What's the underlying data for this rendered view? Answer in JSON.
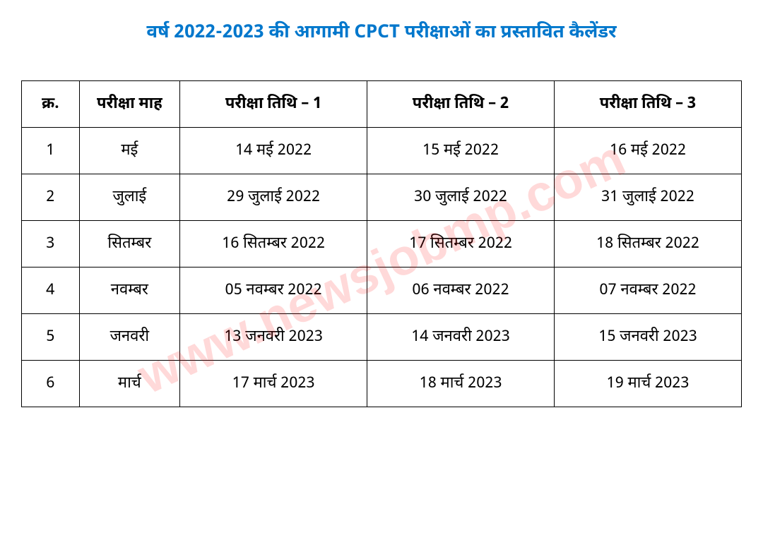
{
  "title": "वर्ष 2022-2023 की आगामी CPCT परीक्षाओं का प्रस्तावित कैलेंडर",
  "watermark_text": "www.newsjobmp.com",
  "table": {
    "columns": [
      {
        "label": "क्र.",
        "width": "8%"
      },
      {
        "label": "परीक्षा माह",
        "width": "14%"
      },
      {
        "label": "परीक्षा तिथि – 1",
        "width": "26%"
      },
      {
        "label": "परीक्षा तिथि – 2",
        "width": "26%"
      },
      {
        "label": "परीक्षा तिथि – 3",
        "width": "26%"
      }
    ],
    "rows": [
      {
        "index": "1",
        "month": "मई",
        "date1": "14 मई 2022",
        "date2": "15 मई 2022",
        "date3": "16 मई 2022"
      },
      {
        "index": "2",
        "month": "जुलाई",
        "date1": "29 जुलाई 2022",
        "date2": "30 जुलाई 2022",
        "date3": "31 जुलाई 2022"
      },
      {
        "index": "3",
        "month": "सितम्बर",
        "date1": "16 सितम्बर 2022",
        "date2": "17 सितम्बर 2022",
        "date3": "18 सितम्बर 2022"
      },
      {
        "index": "4",
        "month": "नवम्बर",
        "date1": "05 नवम्बर 2022",
        "date2": "06 नवम्बर 2022",
        "date3": "07 नवम्बर 2022"
      },
      {
        "index": "5",
        "month": "जनवरी",
        "date1": "13 जनवरी 2023",
        "date2": "14 जनवरी 2023",
        "date3": "15 जनवरी 2023"
      },
      {
        "index": "6",
        "month": "मार्च",
        "date1": "17 मार्च 2023",
        "date2": "18 मार्च 2023",
        "date3": "19 मार्च 2023"
      }
    ]
  },
  "styling": {
    "title_color": "#0077cc",
    "title_fontsize": 26,
    "border_color": "#000000",
    "cell_fontsize": 22,
    "text_color": "#000000",
    "background_color": "#ffffff",
    "watermark_color": "rgba(255, 0, 0, 0.15)",
    "watermark_fontsize": 72,
    "watermark_rotation_deg": -25
  }
}
